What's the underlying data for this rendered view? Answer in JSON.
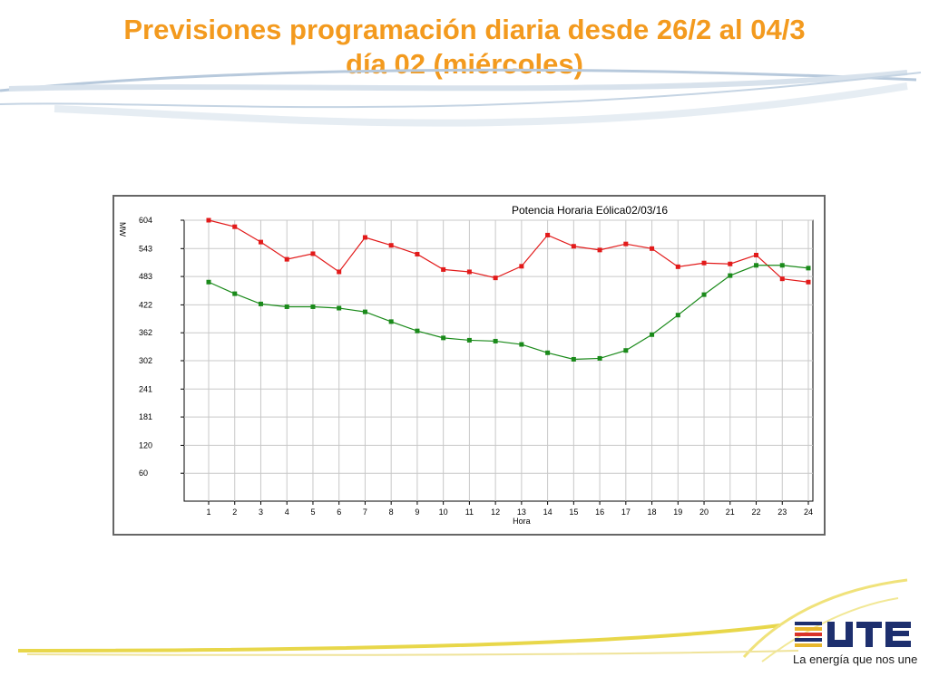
{
  "slide": {
    "title_line1": "Previsiones programación diaria desde 26/2 al 04/3",
    "title_line2": "día 02 (miércoles)"
  },
  "brand": {
    "logo_text": "UTE",
    "tagline": "La energía que nos une"
  },
  "colors": {
    "title": "#f39a1e",
    "series_red": "#e21a1a",
    "series_green": "#1a8a1a"
  },
  "chart_data": {
    "type": "line",
    "title": "Potencia Horaria Eólica02/03/16",
    "xlabel": "Hora",
    "ylabel": "MW",
    "x": [
      1,
      2,
      3,
      4,
      5,
      6,
      7,
      8,
      9,
      10,
      11,
      12,
      13,
      14,
      15,
      16,
      17,
      18,
      19,
      20,
      21,
      22,
      23,
      24
    ],
    "x_ticks": [
      "1",
      "2",
      "3",
      "4",
      "5",
      "6",
      "7",
      "8",
      "9",
      "10",
      "11",
      "12",
      "13",
      "14",
      "15",
      "16",
      "17",
      "18",
      "19",
      "20",
      "21",
      "22",
      "23",
      "24"
    ],
    "y_ticks": [
      "60",
      "120",
      "181",
      "241",
      "302",
      "362",
      "422",
      "483",
      "543",
      "604"
    ],
    "ylim": [
      0,
      604
    ],
    "grid": true,
    "series": [
      {
        "color": "#e21a1a",
        "values": [
          604,
          590,
          557,
          520,
          532,
          493,
          567,
          550,
          531,
          498,
          493,
          480,
          505,
          572,
          548,
          540,
          553,
          543,
          504,
          512,
          510,
          529,
          478,
          471
        ]
      },
      {
        "color": "#1a8a1a",
        "values": [
          471,
          446,
          424,
          418,
          418,
          415,
          407,
          386,
          366,
          351,
          346,
          344,
          337,
          319,
          305,
          307,
          324,
          358,
          400,
          444,
          485,
          507,
          507,
          501
        ]
      }
    ]
  }
}
